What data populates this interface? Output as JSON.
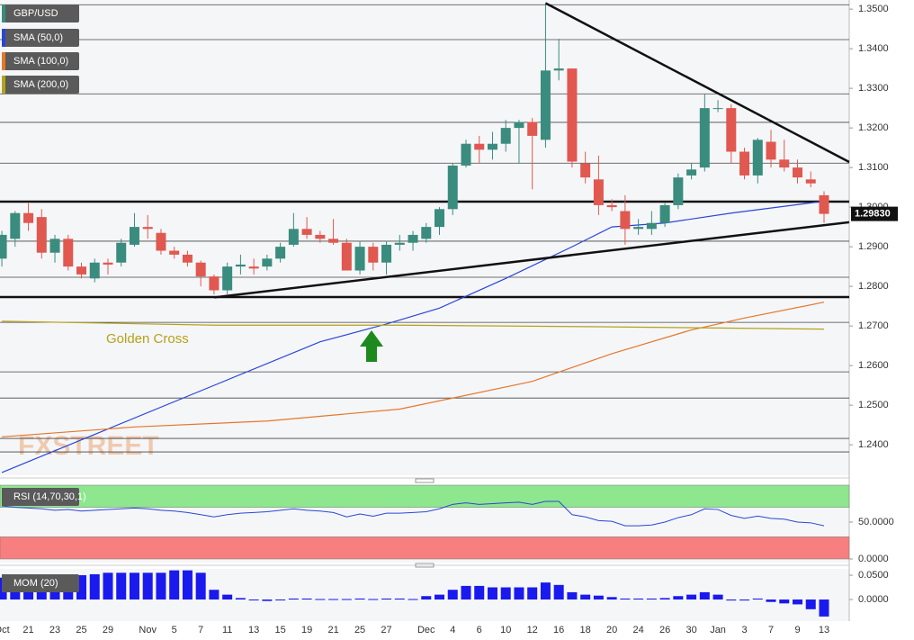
{
  "chart_data": [
    {
      "type": "candlestick",
      "title": "GBP/USD",
      "title_color": "#3a8c7e",
      "watermark": "FXSTREET",
      "annotation": "Golden Cross",
      "xlim": [
        -0.14,
        63.9
      ],
      "ylim": [
        1.2323,
        1.3523
      ],
      "yticks": [
        {
          "value": 1.35,
          "label": "1.3500"
        },
        {
          "value": 1.34,
          "label": "1.3400"
        },
        {
          "value": 1.33,
          "label": "1.3300"
        },
        {
          "value": 1.32,
          "label": "1.3200"
        },
        {
          "value": 1.31,
          "label": "1.3100"
        },
        {
          "value": 1.3,
          "label": "1.3000"
        },
        {
          "value": 1.29,
          "label": "1.2900"
        },
        {
          "value": 1.28,
          "label": "1.2800"
        },
        {
          "value": 1.27,
          "label": "1.2700"
        },
        {
          "value": 1.26,
          "label": "1.2600"
        },
        {
          "value": 1.25,
          "label": "1.2500"
        },
        {
          "value": 1.24,
          "label": "1.2400"
        }
      ],
      "xticks": [
        {
          "value": 0,
          "label": "Oct"
        },
        {
          "value": 2,
          "label": "21"
        },
        {
          "value": 4,
          "label": "23"
        },
        {
          "value": 6,
          "label": "25"
        },
        {
          "value": 8,
          "label": "29"
        },
        {
          "value": 11,
          "label": "Nov"
        },
        {
          "value": 13,
          "label": "5"
        },
        {
          "value": 15,
          "label": "7"
        },
        {
          "value": 17,
          "label": "11"
        },
        {
          "value": 19,
          "label": "13"
        },
        {
          "value": 21,
          "label": "15"
        },
        {
          "value": 23,
          "label": "19"
        },
        {
          "value": 25,
          "label": "21"
        },
        {
          "value": 27,
          "label": "25"
        },
        {
          "value": 29,
          "label": "27"
        },
        {
          "value": 32,
          "label": "Dec"
        },
        {
          "value": 34,
          "label": "4"
        },
        {
          "value": 36,
          "label": "6"
        },
        {
          "value": 38,
          "label": "10"
        },
        {
          "value": 40,
          "label": "12"
        },
        {
          "value": 42,
          "label": "16"
        },
        {
          "value": 44,
          "label": "18"
        },
        {
          "value": 46,
          "label": "20"
        },
        {
          "value": 48,
          "label": "24"
        },
        {
          "value": 50,
          "label": "26"
        },
        {
          "value": 52,
          "label": "30"
        },
        {
          "value": 54,
          "label": "Jan"
        },
        {
          "value": 56,
          "label": "3"
        },
        {
          "value": 58,
          "label": "7"
        },
        {
          "value": 60,
          "label": "9"
        },
        {
          "value": 62,
          "label": "13"
        }
      ],
      "open": [
        1.287,
        1.292,
        1.2985,
        1.2975,
        1.2885,
        1.292,
        1.285,
        1.282,
        1.286,
        1.286,
        1.2905,
        1.295,
        1.2935,
        1.289,
        1.288,
        1.286,
        1.2825,
        1.279,
        1.285,
        1.285,
        1.285,
        1.287,
        1.2905,
        1.2945,
        1.293,
        1.292,
        1.291,
        1.284,
        1.29,
        1.286,
        1.2905,
        1.291,
        1.292,
        1.295,
        1.2995,
        1.3105,
        1.316,
        1.3145,
        1.316,
        1.32,
        1.3215,
        1.317,
        1.3345,
        1.335,
        1.311,
        1.307,
        1.3005,
        1.299,
        1.2945,
        1.2945,
        1.296,
        1.3005,
        1.308,
        1.31,
        1.325,
        1.325,
        1.314,
        1.308,
        1.3165,
        1.312,
        1.31,
        1.307,
        1.303
      ],
      "high": [
        1.294,
        1.299,
        1.301,
        1.2995,
        1.293,
        1.293,
        1.286,
        1.287,
        1.287,
        1.292,
        1.2985,
        1.298,
        1.2945,
        1.29,
        1.289,
        1.2865,
        1.283,
        1.286,
        1.288,
        1.287,
        1.288,
        1.291,
        1.2985,
        1.2975,
        1.294,
        1.297,
        1.292,
        1.2915,
        1.291,
        1.2915,
        1.293,
        1.294,
        1.296,
        1.3,
        1.311,
        1.317,
        1.318,
        1.319,
        1.322,
        1.322,
        1.3225,
        1.3515,
        1.3425,
        1.335,
        1.314,
        1.313,
        1.302,
        1.303,
        1.297,
        1.299,
        1.301,
        1.3085,
        1.311,
        1.3285,
        1.327,
        1.326,
        1.315,
        1.3175,
        1.3195,
        1.317,
        1.312,
        1.309,
        1.304
      ],
      "low": [
        1.285,
        1.29,
        1.294,
        1.287,
        1.286,
        1.284,
        1.282,
        1.281,
        1.283,
        1.285,
        1.29,
        1.292,
        1.288,
        1.287,
        1.285,
        1.28,
        1.278,
        1.278,
        1.283,
        1.283,
        1.284,
        1.286,
        1.29,
        1.292,
        1.291,
        1.2905,
        1.284,
        1.283,
        1.284,
        1.283,
        1.289,
        1.289,
        1.291,
        1.293,
        1.298,
        1.31,
        1.311,
        1.312,
        1.314,
        1.311,
        1.3045,
        1.315,
        1.332,
        1.31,
        1.306,
        1.298,
        1.299,
        1.2905,
        1.293,
        1.293,
        1.295,
        1.2995,
        1.307,
        1.309,
        1.324,
        1.311,
        1.307,
        1.306,
        1.31,
        1.309,
        1.306,
        1.305,
        1.296
      ],
      "close": [
        1.293,
        1.2985,
        1.296,
        1.2885,
        1.292,
        1.285,
        1.283,
        1.286,
        1.2855,
        1.291,
        1.295,
        1.2945,
        1.289,
        1.288,
        1.286,
        1.2825,
        1.279,
        1.285,
        1.2855,
        1.2845,
        1.287,
        1.29,
        1.2945,
        1.293,
        1.292,
        1.291,
        1.284,
        1.29,
        1.286,
        1.2905,
        1.291,
        1.293,
        1.295,
        1.2995,
        1.3105,
        1.316,
        1.3145,
        1.316,
        1.32,
        1.3215,
        1.318,
        1.3345,
        1.335,
        1.3115,
        1.3075,
        1.3005,
        1.3,
        1.2945,
        1.295,
        1.296,
        1.3005,
        1.3075,
        1.3095,
        1.325,
        1.325,
        1.314,
        1.308,
        1.317,
        1.312,
        1.31,
        1.3075,
        1.306,
        1.2983
      ],
      "up_color": "#3a8c7e",
      "down_color": "#e0584f",
      "series": [
        {
          "name": "SMA (50,0)",
          "color": "#2a46d6",
          "x": [
            0,
            8,
            16,
            24,
            29,
            33,
            38,
            43,
            46,
            50,
            55,
            62
          ],
          "values": [
            1.233,
            1.244,
            1.255,
            1.266,
            1.2705,
            1.2745,
            1.282,
            1.29,
            1.295,
            1.296,
            1.2985,
            1.3015
          ]
        },
        {
          "name": "SMA (100,0)",
          "color": "#e5772a",
          "x": [
            0,
            10,
            20,
            30,
            40,
            46,
            52,
            56,
            62
          ],
          "values": [
            1.242,
            1.2445,
            1.246,
            1.249,
            1.256,
            1.263,
            1.269,
            1.272,
            1.276
          ]
        },
        {
          "name": "SMA (200,0)",
          "color": "#b5a21a",
          "x": [
            0,
            16,
            30,
            45,
            62
          ],
          "values": [
            1.2712,
            1.2702,
            1.2702,
            1.2698,
            1.2692
          ]
        }
      ],
      "trendlines": [
        {
          "x": [
            41,
            63.9
          ],
          "values": [
            1.3515,
            1.3114
          ]
        },
        {
          "x": [
            16,
            63.9
          ],
          "values": [
            1.2772,
            1.2962
          ]
        }
      ],
      "levels": [
        1.3511,
        1.3423,
        1.3286,
        1.3214,
        1.3111,
        1.2914,
        1.2823,
        1.2709,
        1.2584,
        1.2518,
        1.2416,
        1.2382
      ],
      "key_levels": [
        1.3014,
        1.2773
      ],
      "last_price": {
        "value": 1.2983,
        "label": "1.29830"
      }
    },
    {
      "type": "line",
      "title": "RSI (14,70,30,1)",
      "ylim": [
        0,
        100
      ],
      "color": "#2a46d6",
      "yticks": [
        {
          "value": 50,
          "label": "50.0000"
        },
        {
          "value": 0,
          "label": "0.0000"
        }
      ],
      "bands": [
        {
          "from": 70,
          "to": 100,
          "color": "#8ee68e"
        },
        {
          "from": 0,
          "to": 30,
          "color": "#f77f7f"
        }
      ],
      "values": [
        72,
        70,
        69,
        68,
        66,
        67,
        65,
        66,
        67,
        68,
        69,
        68,
        66,
        65,
        63,
        60,
        57,
        60,
        62,
        63,
        64,
        66,
        68,
        66,
        65,
        63,
        57,
        61,
        58,
        62,
        62,
        63,
        64,
        68,
        74,
        76,
        74,
        75,
        76,
        77,
        74,
        78,
        78,
        60,
        57,
        52,
        51,
        45,
        45,
        46,
        50,
        56,
        60,
        68,
        67,
        59,
        55,
        58,
        55,
        54,
        50,
        49,
        45
      ]
    },
    {
      "type": "bar",
      "title": "MOM (20)",
      "ylim": [
        -0.0444,
        0.063
      ],
      "color": "#1a1aee",
      "yticks": [
        {
          "value": 0.05,
          "label": "0.0500"
        },
        {
          "value": 0,
          "label": "0.0000"
        }
      ],
      "values": [
        0.045,
        0.05,
        0.05,
        0.05,
        0.05,
        0.05,
        0.05,
        0.052,
        0.055,
        0.055,
        0.055,
        0.055,
        0.055,
        0.06,
        0.06,
        0.055,
        0.02,
        0.01,
        0.003,
        0,
        -0.003,
        0,
        0.002,
        0.002,
        0.001,
        0.001,
        0.001,
        0.002,
        0.001,
        0.002,
        0.002,
        0.001,
        0.007,
        0.01,
        0.02,
        0.028,
        0.028,
        0.025,
        0.025,
        0.025,
        0.025,
        0.035,
        0.03,
        0.015,
        0.01,
        0.008,
        0.005,
        0.002,
        0.002,
        0.002,
        0.003,
        0.007,
        0.01,
        0.015,
        0.01,
        -0.002,
        -0.002,
        0.002,
        -0.005,
        -0.008,
        -0.01,
        -0.02,
        -0.035
      ]
    }
  ]
}
